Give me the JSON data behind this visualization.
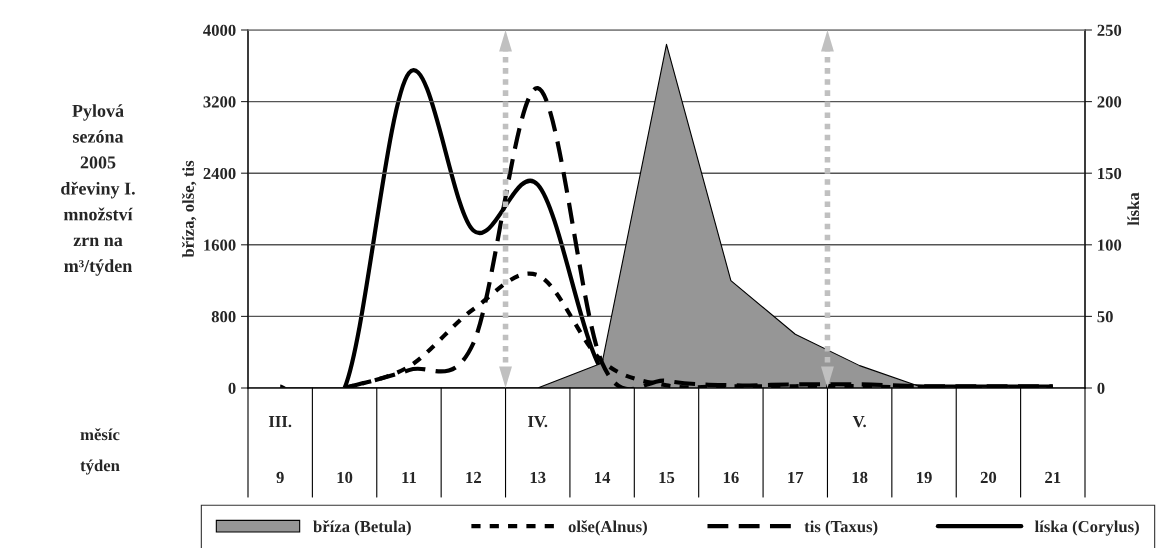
{
  "chart_data": {
    "type": "line",
    "title": "Pylová\nsezóna\n2005\ndřeviny I.\nmnožství\nzrn na\nm³/týden",
    "ylabel": "bříza, olše, tis",
    "y2label": "líska",
    "categories": [
      "9",
      "10",
      "11",
      "12",
      "13",
      "14",
      "15",
      "16",
      "17",
      "18",
      "19",
      "20",
      "21"
    ],
    "series": [
      {
        "name": "bříza (Betula)",
        "type": "area",
        "color": "#969696",
        "values": [
          0,
          0,
          0,
          0,
          0,
          280,
          3840,
          1200,
          600,
          250,
          0,
          0,
          0
        ]
      },
      {
        "name": "olše(Alnus)",
        "color": "#000000",
        "line_style": "dashed",
        "values": [
          null,
          0,
          240,
          880,
          1260,
          300,
          30,
          20,
          20,
          20,
          0,
          0,
          0
        ]
      },
      {
        "name": "tis (Taxus)",
        "color": "#000000",
        "line_style": "dashed",
        "values": [
          null,
          0,
          200,
          500,
          3350,
          280,
          80,
          30,
          40,
          40,
          20,
          20,
          20
        ]
      },
      {
        "name": "líska (Corylus)",
        "color": "#000000",
        "line_style": "solid",
        "axis": "y2",
        "values": [
          1,
          0,
          220,
          110,
          142,
          12,
          5,
          3,
          3,
          2,
          1,
          1,
          1
        ]
      }
    ],
    "ylim": [
      0,
      4000
    ],
    "yticks": [
      0,
      800,
      1600,
      2400,
      3200,
      4000
    ],
    "y2lim": [
      0,
      250
    ],
    "y2ticks": [
      0,
      50,
      100,
      150,
      200,
      250
    ],
    "grid": "y",
    "legend": "bottom",
    "annotations": [
      "III.",
      "IV.",
      "V.",
      "měsíc",
      "týden"
    ]
  }
}
